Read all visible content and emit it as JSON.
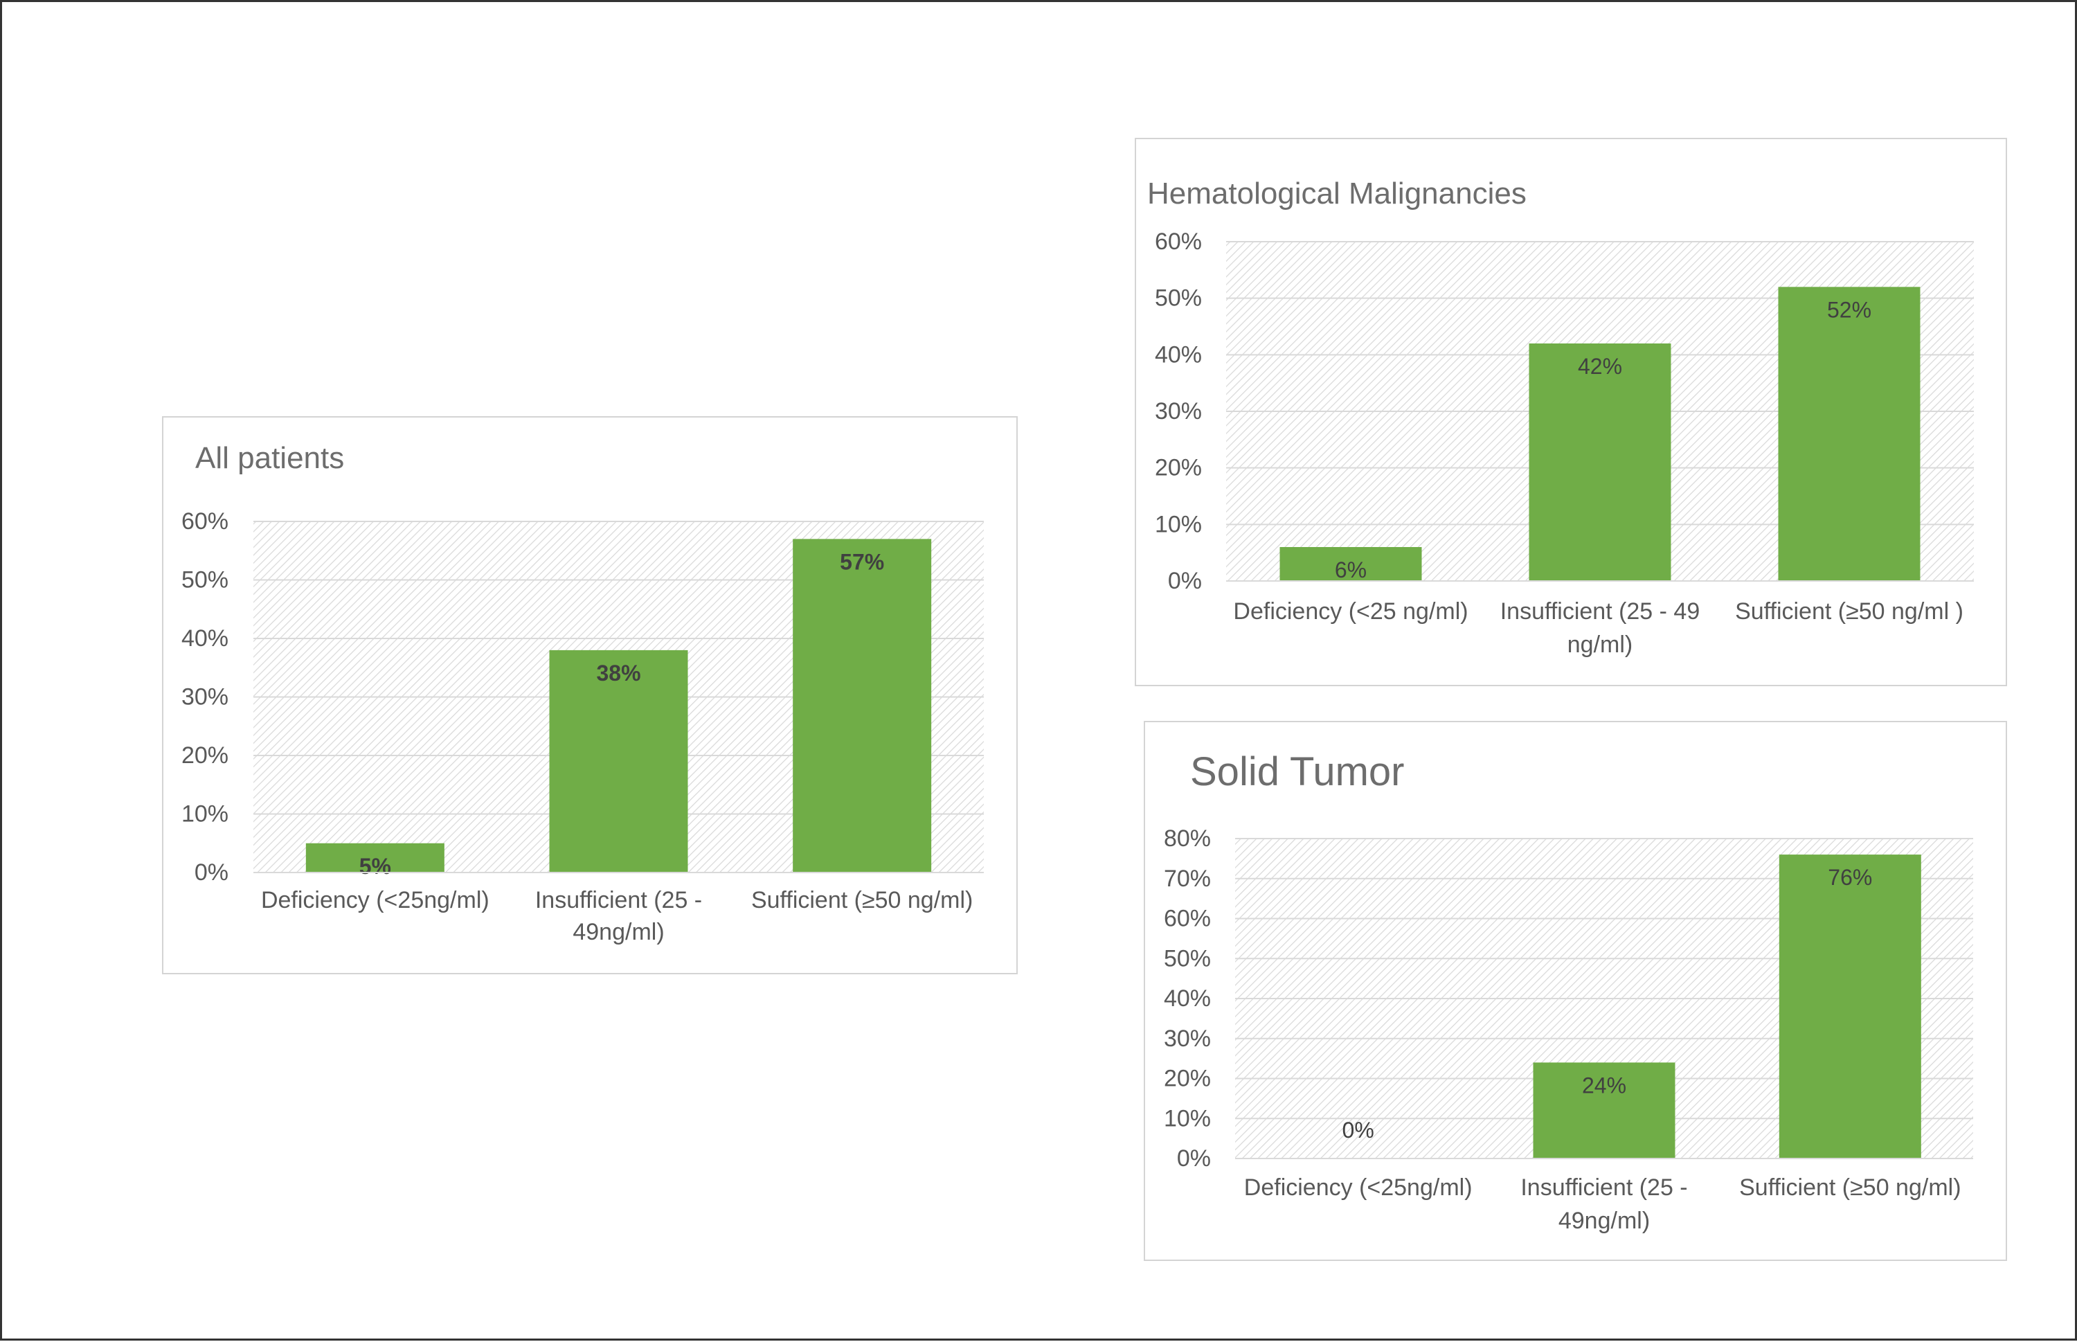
{
  "colors": {
    "bar": "#70ad47",
    "grid": "#d9d9d9",
    "text": "#595959",
    "title": "#6d6d6d",
    "label": "#404040",
    "hatch": "#d9d9d9"
  },
  "chart_data": [
    {
      "type": "bar",
      "title": "All patients",
      "categories": [
        "Deficiency (<25ng/ml)",
        "Insufficient (25 - 49ng/ml)",
        "Sufficient (≥50 ng/ml)"
      ],
      "category_lines": [
        [
          "Deficiency (<25ng/ml)"
        ],
        [
          "Insufficient (25 -",
          "49ng/ml)"
        ],
        [
          "Sufficient (≥50 ng/ml)"
        ]
      ],
      "values": [
        5,
        38,
        57
      ],
      "data_labels": [
        "5%",
        "38%",
        "57%"
      ],
      "bold_labels": true,
      "yticks": [
        "0%",
        "10%",
        "20%",
        "30%",
        "40%",
        "50%",
        "60%"
      ],
      "ylim": [
        0,
        60
      ],
      "xlabel": "",
      "ylabel": ""
    },
    {
      "type": "bar",
      "title": "Hematological Malignancies",
      "categories": [
        "Deficiency (<25 ng/ml)",
        "Insufficient (25 - 49 ng/ml)",
        "Sufficient (≥50 ng/ml )"
      ],
      "category_lines": [
        [
          "Deficiency (<25 ng/ml)"
        ],
        [
          "Insufficient (25 - 49",
          "ng/ml)"
        ],
        [
          "Sufficient (≥50 ng/ml )"
        ]
      ],
      "values": [
        6,
        42,
        52
      ],
      "data_labels": [
        "6%",
        "42%",
        "52%"
      ],
      "bold_labels": false,
      "yticks": [
        "0%",
        "10%",
        "20%",
        "30%",
        "40%",
        "50%",
        "60%"
      ],
      "ylim": [
        0,
        60
      ],
      "xlabel": "",
      "ylabel": ""
    },
    {
      "type": "bar",
      "title": "Solid Tumor",
      "categories": [
        "Deficiency (<25ng/ml)",
        "Insufficient (25 - 49ng/ml)",
        "Sufficient (≥50 ng/ml)"
      ],
      "category_lines": [
        [
          "Deficiency (<25ng/ml)"
        ],
        [
          "Insufficient (25 -",
          "49ng/ml)"
        ],
        [
          "Sufficient (≥50 ng/ml)"
        ]
      ],
      "values": [
        0,
        24,
        76
      ],
      "data_labels": [
        "0%",
        "24%",
        "76%"
      ],
      "bold_labels": false,
      "yticks": [
        "0%",
        "10%",
        "20%",
        "30%",
        "40%",
        "50%",
        "60%",
        "70%",
        "80%"
      ],
      "ylim": [
        0,
        80
      ],
      "xlabel": "",
      "ylabel": ""
    }
  ]
}
